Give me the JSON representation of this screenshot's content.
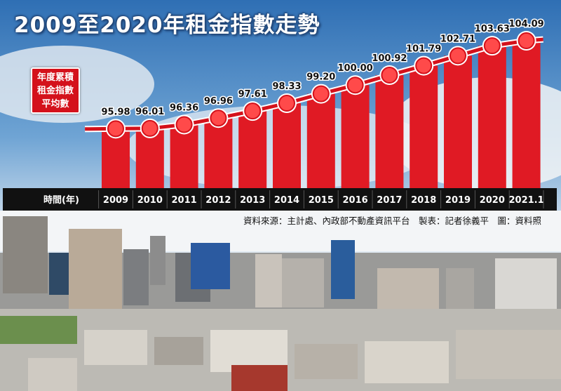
{
  "title": "2009至2020年租金指數走勢",
  "legend_label": "年度累積租金指數平均數",
  "x_axis_label": "時間(年)",
  "source_note": "資料來源：主計處、內政部不動產資訊平台　製表：記者徐義平　圖：資料照",
  "colors": {
    "bar": "#e01a24",
    "line": "#d4111b",
    "marker": "#ff4a4a",
    "axis_strip": "#111111"
  },
  "chart_data": {
    "type": "bar",
    "title": "2009至2020年租金指數走勢",
    "xlabel": "時間(年)",
    "ylabel": "",
    "series_name": "年度累積租金指數平均數",
    "categories": [
      "2009",
      "2010",
      "2011",
      "2012",
      "2013",
      "2014",
      "2015",
      "2016",
      "2017",
      "2018",
      "2019",
      "2020",
      "2021.1"
    ],
    "values": [
      95.98,
      96.01,
      96.36,
      96.96,
      97.61,
      98.33,
      99.2,
      100.0,
      100.92,
      101.79,
      102.71,
      103.63,
      104.09
    ],
    "value_labels": [
      "95.98",
      "96.01",
      "96.36",
      "96.96",
      "97.61",
      "98.33",
      "99.20",
      "100.00",
      "100.92",
      "101.79",
      "102.71",
      "103.63",
      "104.09"
    ],
    "ylim": [
      90.5,
      105
    ],
    "grid": false,
    "line_overlay": true
  }
}
